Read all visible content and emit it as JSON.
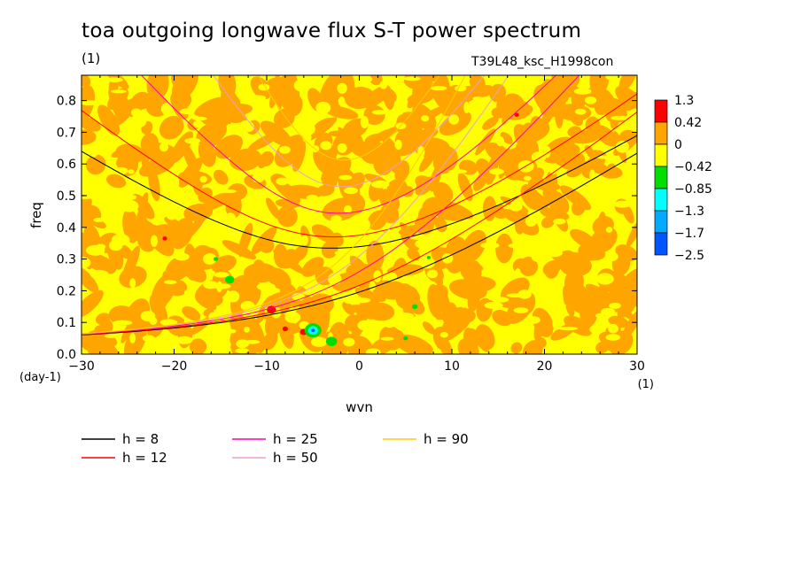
{
  "title": "toa outgoing longwave flux S-T power spectrum",
  "title_unit": "(1)",
  "run_label": "T39L48_ksc_H1998con",
  "colors": {
    "background": "#ffffff",
    "field_orange": "#ffa500",
    "field_yellow": "#ffff00"
  },
  "chart_data": {
    "type": "heatmap",
    "xlabel": "wvn",
    "ylabel": "freq",
    "x_unit": "(1)",
    "y_unit": "(day-1)",
    "xlim": [
      -30,
      30
    ],
    "ylim": [
      0,
      0.88
    ],
    "x_ticks": [
      -30,
      -20,
      -10,
      0,
      10,
      20,
      30
    ],
    "x_tick_labels": [
      "−30",
      "−20",
      "−10",
      "0",
      "10",
      "20",
      "30"
    ],
    "y_ticks": [
      0,
      0.1,
      0.2,
      0.3,
      0.4,
      0.5,
      0.6,
      0.7,
      0.8
    ],
    "y_tick_labels": [
      "0.0",
      "0.1",
      "0.2",
      "0.3",
      "0.4",
      "0.5",
      "0.6",
      "0.7",
      "0.8"
    ],
    "colorbar": {
      "labels": [
        "1.3",
        "0.42",
        "0",
        "−0.42",
        "−0.85",
        "−1.3",
        "−1.7",
        "−2.5"
      ],
      "colors": [
        "#ff0000",
        "#ffa500",
        "#ffff00",
        "#00dd00",
        "#00ffff",
        "#00aaff",
        "#0055ff"
      ]
    },
    "blobs": [
      {
        "x": -9.5,
        "y": 0.14,
        "color": "#ff0000",
        "r": 0.5
      },
      {
        "x": -6,
        "y": 0.07,
        "color": "#ff0000",
        "r": 0.4
      },
      {
        "x": -8,
        "y": 0.08,
        "color": "#ff0000",
        "r": 0.3
      },
      {
        "x": -21,
        "y": 0.365,
        "color": "#ff0000",
        "r": 0.25
      },
      {
        "x": 17,
        "y": 0.755,
        "color": "#ff0000",
        "r": 0.25
      },
      {
        "x": -5,
        "y": 0.075,
        "color": "#00dd00",
        "r": 0.9
      },
      {
        "x": -5,
        "y": 0.075,
        "color": "#00ffff",
        "r": 0.55
      },
      {
        "x": -5,
        "y": 0.075,
        "color": "#0055ff",
        "r": 0.2
      },
      {
        "x": -3,
        "y": 0.04,
        "color": "#00dd00",
        "r": 0.6
      },
      {
        "x": -14,
        "y": 0.235,
        "color": "#00dd00",
        "r": 0.5
      },
      {
        "x": -15.5,
        "y": 0.3,
        "color": "#00dd00",
        "r": 0.25
      },
      {
        "x": 6,
        "y": 0.15,
        "color": "#00dd00",
        "r": 0.3
      },
      {
        "x": 5,
        "y": 0.05,
        "color": "#00dd00",
        "r": 0.25
      },
      {
        "x": 7.5,
        "y": 0.305,
        "color": "#00dd00",
        "r": 0.2
      }
    ],
    "dispersion_curves": [
      {
        "h": 8,
        "color": "#000000"
      },
      {
        "h": 12,
        "color": "#ff0000"
      },
      {
        "h": 25,
        "color": "#ff00aa"
      },
      {
        "h": 50,
        "color": "#e8a0d0"
      },
      {
        "h": 90,
        "color": "#ffcc00"
      }
    ],
    "legend": [
      {
        "label": "h =  8",
        "color": "#000000"
      },
      {
        "label": "h = 12",
        "color": "#ff0000"
      },
      {
        "label": "h = 25",
        "color": "#ff00aa"
      },
      {
        "label": "h = 50",
        "color": "#e8a0d0"
      },
      {
        "label": "h = 90",
        "color": "#ffcc00"
      }
    ]
  }
}
